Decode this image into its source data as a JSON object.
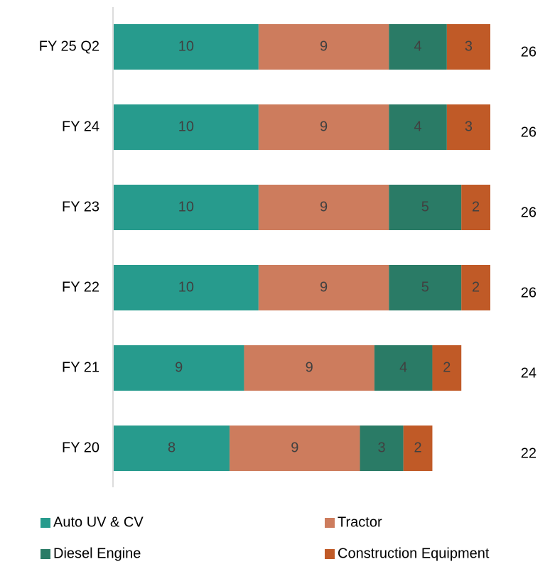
{
  "chart_data": {
    "type": "stacked-bar-horizontal",
    "categories": [
      "FY 25 Q2",
      "FY 24",
      "FY 23",
      "FY 22",
      "FY 21",
      "FY 20"
    ],
    "series": [
      {
        "name": "Auto UV & CV",
        "color": "#279b8d",
        "values": [
          10,
          10,
          10,
          10,
          9,
          8
        ]
      },
      {
        "name": "Tractor",
        "color": "#cd7c5d",
        "values": [
          9,
          9,
          9,
          9,
          9,
          9
        ]
      },
      {
        "name": "Diesel Engine",
        "color": "#2a7b66",
        "values": [
          4,
          4,
          5,
          5,
          4,
          3
        ]
      },
      {
        "name": "Construction Equipment",
        "color": "#c05a27",
        "values": [
          3,
          3,
          2,
          2,
          2,
          2
        ]
      }
    ],
    "totals": [
      26,
      26,
      26,
      26,
      24,
      22
    ],
    "xlim": [
      0,
      26
    ]
  }
}
